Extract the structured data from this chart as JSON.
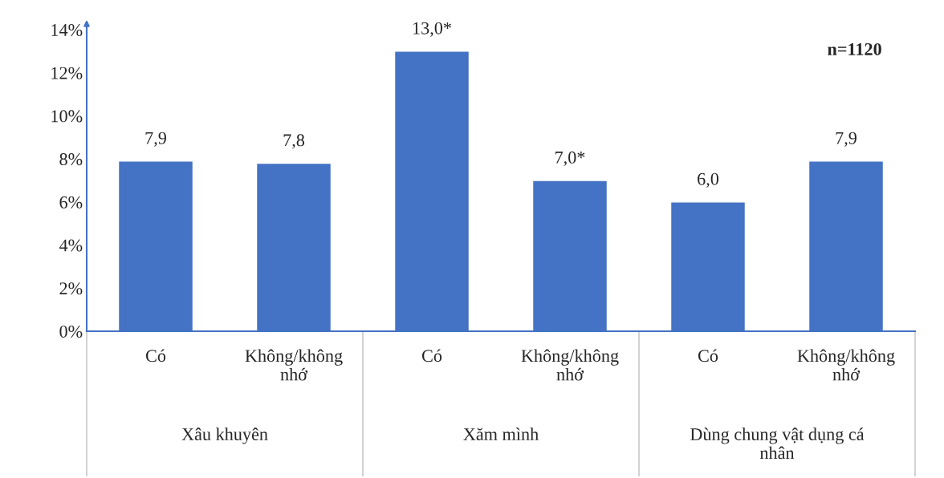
{
  "chart_data": {
    "type": "bar",
    "categories": [
      "Có",
      "Không/không\nnhớ",
      "Có",
      "Không/không\nnhớ",
      "Có",
      "Không/không\nnhớ"
    ],
    "values": [
      7.9,
      7.8,
      13.0,
      7.0,
      6.0,
      7.9
    ],
    "value_labels": [
      "7,9",
      "7,8",
      "13,0*",
      "7,0*",
      "6,0",
      "7,9"
    ],
    "color": "#4472c4",
    "ylim": [
      0,
      14
    ],
    "yticks": [
      {
        "value": 0,
        "label": "0%"
      },
      {
        "value": 2,
        "label": "2%"
      },
      {
        "value": 4,
        "label": "4%"
      },
      {
        "value": 6,
        "label": "6%"
      },
      {
        "value": 8,
        "label": "8%"
      },
      {
        "value": 10,
        "label": "10%"
      },
      {
        "value": 12,
        "label": "12%"
      },
      {
        "value": 14,
        "label": "14%"
      }
    ],
    "annotations": [
      "n=1120",
      "Xâu khuyên",
      "Xăm mình",
      "Dùng chung vật dụng cá\nnhân"
    ],
    "grid": false,
    "legend": false
  }
}
